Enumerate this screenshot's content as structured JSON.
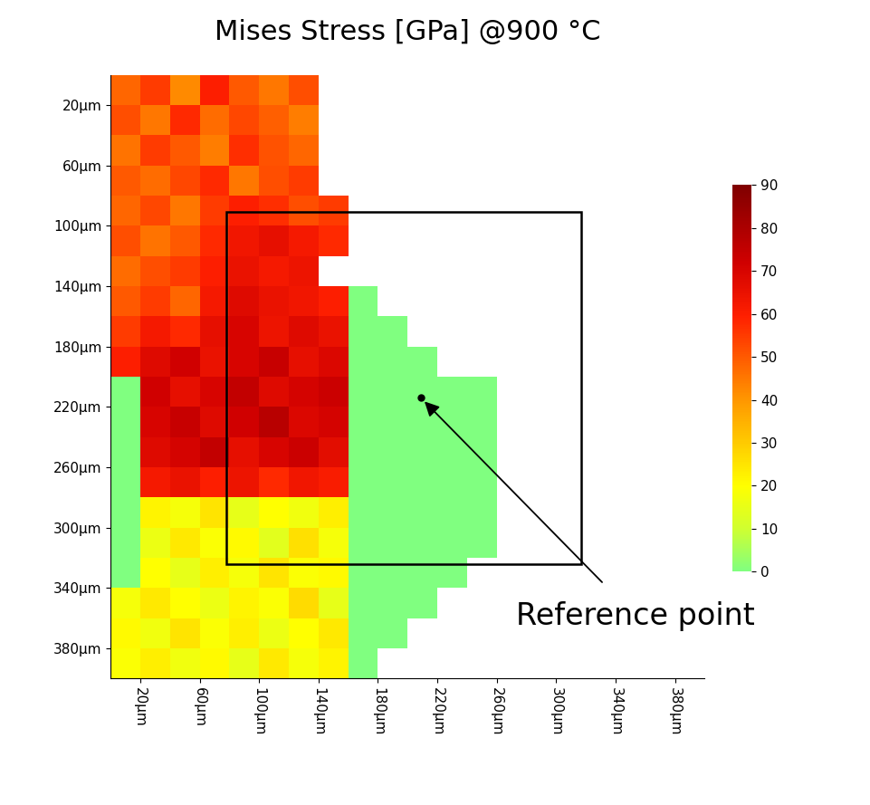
{
  "chart_data": {
    "type": "heatmap",
    "title": "Mises Stress [GPa] @900 °C",
    "xlim": [
      0,
      400
    ],
    "ylim": [
      400,
      0
    ],
    "xticks": [
      {
        "value": 20,
        "label": "20µm"
      },
      {
        "value": 60,
        "label": "60µm"
      },
      {
        "value": 100,
        "label": "100µm"
      },
      {
        "value": 140,
        "label": "140µm"
      },
      {
        "value": 180,
        "label": "180µm"
      },
      {
        "value": 220,
        "label": "220µm"
      },
      {
        "value": 260,
        "label": "260µm"
      },
      {
        "value": 300,
        "label": "300µm"
      },
      {
        "value": 340,
        "label": "340µm"
      },
      {
        "value": 380,
        "label": "380µm"
      }
    ],
    "yticks": [
      {
        "value": 20,
        "label": "20µm"
      },
      {
        "value": 60,
        "label": "60µm"
      },
      {
        "value": 100,
        "label": "100µm"
      },
      {
        "value": 140,
        "label": "140µm"
      },
      {
        "value": 180,
        "label": "180µm"
      },
      {
        "value": 220,
        "label": "220µm"
      },
      {
        "value": 260,
        "label": "260µm"
      },
      {
        "value": 300,
        "label": "300µm"
      },
      {
        "value": 340,
        "label": "340µm"
      },
      {
        "value": 380,
        "label": "380µm"
      }
    ],
    "cell_x_edges": [
      0,
      20,
      40,
      60,
      80,
      100,
      120,
      140,
      160,
      180,
      200,
      220,
      240,
      260,
      280
    ],
    "cell_y_edges": [
      0,
      20,
      40,
      60,
      80,
      100,
      120,
      140,
      160,
      180,
      200,
      220,
      240,
      260,
      280,
      300,
      320,
      340,
      360,
      380,
      400
    ],
    "cells": [
      [
        48,
        55,
        42,
        60,
        50,
        45,
        52,
        null,
        null,
        null,
        null,
        null,
        null,
        null
      ],
      [
        52,
        45,
        58,
        47,
        53,
        49,
        44,
        null,
        null,
        null,
        null,
        null,
        null,
        null
      ],
      [
        46,
        55,
        50,
        44,
        57,
        51,
        48,
        null,
        null,
        null,
        null,
        null,
        null,
        null
      ],
      [
        50,
        47,
        53,
        58,
        45,
        52,
        55,
        null,
        null,
        null,
        null,
        null,
        null,
        null
      ],
      [
        48,
        53,
        45,
        55,
        60,
        57,
        52,
        55,
        null,
        null,
        null,
        null,
        null,
        null
      ],
      [
        52,
        46,
        50,
        58,
        63,
        66,
        62,
        58,
        null,
        null,
        null,
        null,
        null,
        null
      ],
      [
        47,
        52,
        55,
        60,
        65,
        62,
        64,
        null,
        null,
        null,
        null,
        null,
        null,
        null
      ],
      [
        50,
        55,
        48,
        62,
        68,
        65,
        63,
        60,
        0,
        null,
        null,
        null,
        null,
        null
      ],
      [
        55,
        62,
        58,
        66,
        70,
        64,
        68,
        65,
        0,
        0,
        null,
        null,
        null,
        null
      ],
      [
        60,
        68,
        72,
        65,
        70,
        74,
        66,
        69,
        0,
        0,
        0,
        null,
        null,
        null
      ],
      [
        0,
        72,
        66,
        70,
        75,
        68,
        71,
        73,
        0,
        0,
        0,
        0,
        0,
        null
      ],
      [
        0,
        70,
        74,
        68,
        72,
        77,
        69,
        71,
        0,
        0,
        0,
        0,
        0,
        null
      ],
      [
        0,
        68,
        71,
        75,
        66,
        70,
        73,
        67,
        0,
        0,
        0,
        0,
        0,
        null
      ],
      [
        0,
        62,
        65,
        60,
        64,
        58,
        63,
        61,
        0,
        0,
        0,
        0,
        0,
        null
      ],
      [
        0,
        22,
        18,
        25,
        15,
        20,
        17,
        23,
        0,
        0,
        0,
        0,
        0,
        null
      ],
      [
        0,
        16,
        24,
        19,
        21,
        14,
        26,
        18,
        0,
        0,
        0,
        0,
        0,
        null
      ],
      [
        0,
        20,
        15,
        23,
        18,
        25,
        19,
        21,
        0,
        0,
        0,
        0,
        null,
        null
      ],
      [
        18,
        24,
        20,
        16,
        22,
        19,
        27,
        15,
        0,
        0,
        0,
        null,
        null,
        null
      ],
      [
        21,
        17,
        25,
        19,
        23,
        16,
        20,
        24,
        0,
        0,
        null,
        null,
        null,
        null
      ],
      [
        19,
        23,
        17,
        21,
        15,
        24,
        18,
        22,
        0,
        null,
        null,
        null,
        null,
        null
      ]
    ],
    "colorbar": {
      "range": [
        0,
        90
      ],
      "ticks": [
        0,
        10,
        20,
        30,
        40,
        50,
        60,
        70,
        80,
        90
      ]
    },
    "box": {
      "x": [
        78,
        317
      ],
      "y": [
        91,
        324
      ]
    },
    "annotation": {
      "text": "Reference point",
      "x": 209,
      "y": 214
    }
  }
}
